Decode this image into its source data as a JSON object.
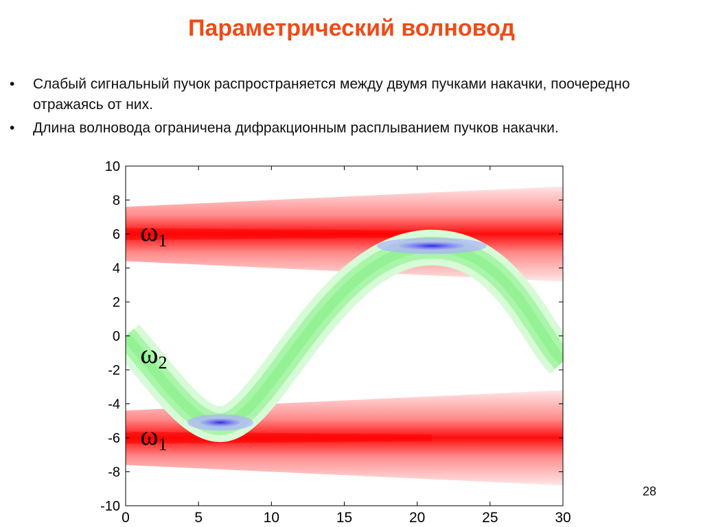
{
  "slide": {
    "title": "Параметрический волновод",
    "bullets": [
      "Слабый сигнальный пучок распространяется между двумя пучками накачки, поочередно отражаясь от них.",
      "Длина волновода ограничена дифракционным расплыванием пучков накачки."
    ],
    "page_number": "28"
  },
  "chart_data": {
    "type": "heatmap",
    "xlim": [
      0,
      30
    ],
    "ylim": [
      -10,
      10
    ],
    "x_ticks": [
      0,
      5,
      10,
      15,
      20,
      25,
      30
    ],
    "y_ticks": [
      10,
      8,
      6,
      4,
      2,
      0,
      -2,
      -4,
      -6,
      -8,
      -10
    ],
    "grid": false,
    "series": [
      {
        "kind": "pump-beam",
        "center": 6,
        "half_width_at_x0": 1.6,
        "half_width_at_x30": 2.8,
        "color": "#ff0000"
      },
      {
        "kind": "pump-beam",
        "center": -6,
        "half_width_at_x0": 1.6,
        "half_width_at_x30": 2.8,
        "color": "#ff0000"
      },
      {
        "kind": "signal-beam",
        "path_x": [
          0,
          6.5,
          21,
          30
        ],
        "path_y": [
          0,
          -5.2,
          5.2,
          -1.5
        ],
        "color": "#7ff07f"
      },
      {
        "kind": "reflection-zone",
        "x": 6.5,
        "y": -5.1,
        "color": "#3a3aff"
      },
      {
        "kind": "reflection-zone",
        "x": 21,
        "y": 5.3,
        "color": "#3a3aff"
      }
    ],
    "annotations": [
      {
        "symbol": "ω",
        "subscript": "1",
        "x": 1.0,
        "y": 5.6
      },
      {
        "symbol": "ω",
        "subscript": "2",
        "x": 1.0,
        "y": -1.6
      },
      {
        "symbol": "ω",
        "subscript": "1",
        "x": 1.0,
        "y": -6.4
      }
    ]
  }
}
